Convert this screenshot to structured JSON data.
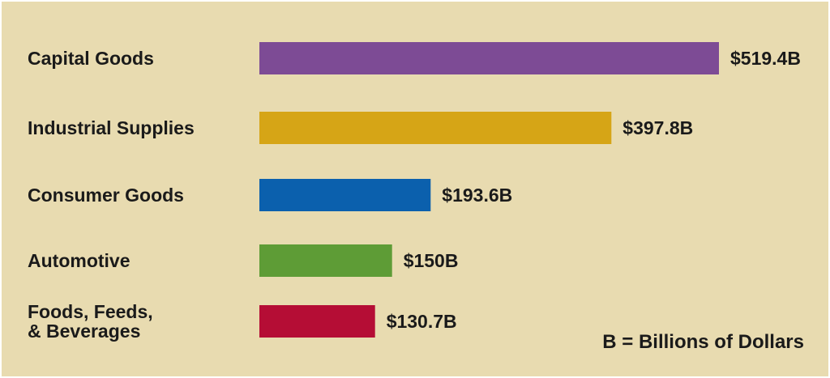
{
  "chart_data": {
    "type": "bar",
    "orientation": "horizontal",
    "categories": [
      [
        "Capital Goods"
      ],
      [
        "Industrial Supplies"
      ],
      [
        "Consumer Goods"
      ],
      [
        "Automotive"
      ],
      [
        "Foods, Feeds,",
        "& Beverages"
      ]
    ],
    "values": [
      519.4,
      397.8,
      193.6,
      150,
      130.7
    ],
    "value_labels": [
      "$519.4B",
      "$397.8B",
      "$193.6B",
      "$150B",
      "$130.7B"
    ],
    "colors": [
      "#7d4b95",
      "#d6a516",
      "#0b60ad",
      "#5e9c36",
      "#b50d35"
    ],
    "note": "B = Billions of Dollars",
    "background_color": "#e8dbb0",
    "grid": false,
    "legend": "none"
  }
}
